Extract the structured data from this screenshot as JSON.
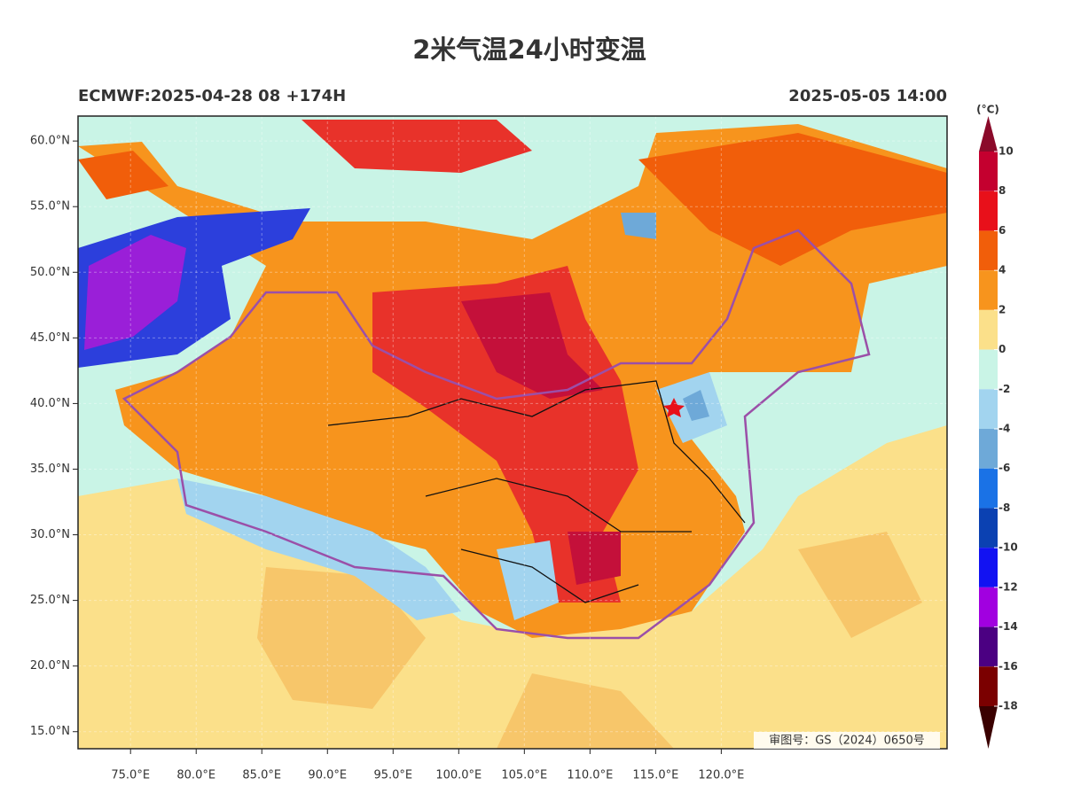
{
  "map": {
    "title": "2米气温24小时变温",
    "left_label": "ECMWF:2025-04-28 08 +174H",
    "right_label": "2025-05-05 14:00",
    "xlim": [
      71,
      137.2
    ],
    "ylim": [
      13.7,
      61.9
    ],
    "yticks": [
      {
        "value": 60,
        "label": "60.0°N"
      },
      {
        "value": 55,
        "label": "55.0°N"
      },
      {
        "value": 50,
        "label": "50.0°N"
      },
      {
        "value": 45,
        "label": "45.0°N"
      },
      {
        "value": 40,
        "label": "40.0°N"
      },
      {
        "value": 35,
        "label": "35.0°N"
      },
      {
        "value": 30,
        "label": "30.0°N"
      },
      {
        "value": 25,
        "label": "25.0°N"
      },
      {
        "value": 20,
        "label": "20.0°N"
      },
      {
        "value": 15,
        "label": "15.0°N"
      }
    ],
    "xticks": [
      {
        "value": 75,
        "label": "75.0°E"
      },
      {
        "value": 80,
        "label": "80.0°E"
      },
      {
        "value": 85,
        "label": "85.0°E"
      },
      {
        "value": 90,
        "label": "90.0°E"
      },
      {
        "value": 95,
        "label": "95.0°E"
      },
      {
        "value": 100,
        "label": "100.0°E"
      },
      {
        "value": 105,
        "label": "105.0°E"
      },
      {
        "value": 110,
        "label": "110.0°E"
      },
      {
        "value": 115,
        "label": "115.0°E"
      },
      {
        "value": 120,
        "label": "120.0°E"
      }
    ],
    "colorbar": {
      "unit": "(°C)",
      "ticks": [
        10,
        8,
        6,
        4,
        2,
        0,
        -2,
        -4,
        -6,
        -8,
        -10,
        -12,
        -14,
        -16,
        -18
      ],
      "colors": [
        "#8b0a2a",
        "#c4002f",
        "#e8101a",
        "#f15e0a",
        "#f7941d",
        "#fbe08a",
        "#c9f4e6",
        "#a2d4ef",
        "#6ea9d8",
        "#1a72e6",
        "#0b41b2",
        "#1212f2",
        "#a100e0",
        "#4b0082",
        "#7b0000",
        "#3a0000"
      ]
    },
    "approval_note": "审图号：GS（2024）0650号"
  }
}
